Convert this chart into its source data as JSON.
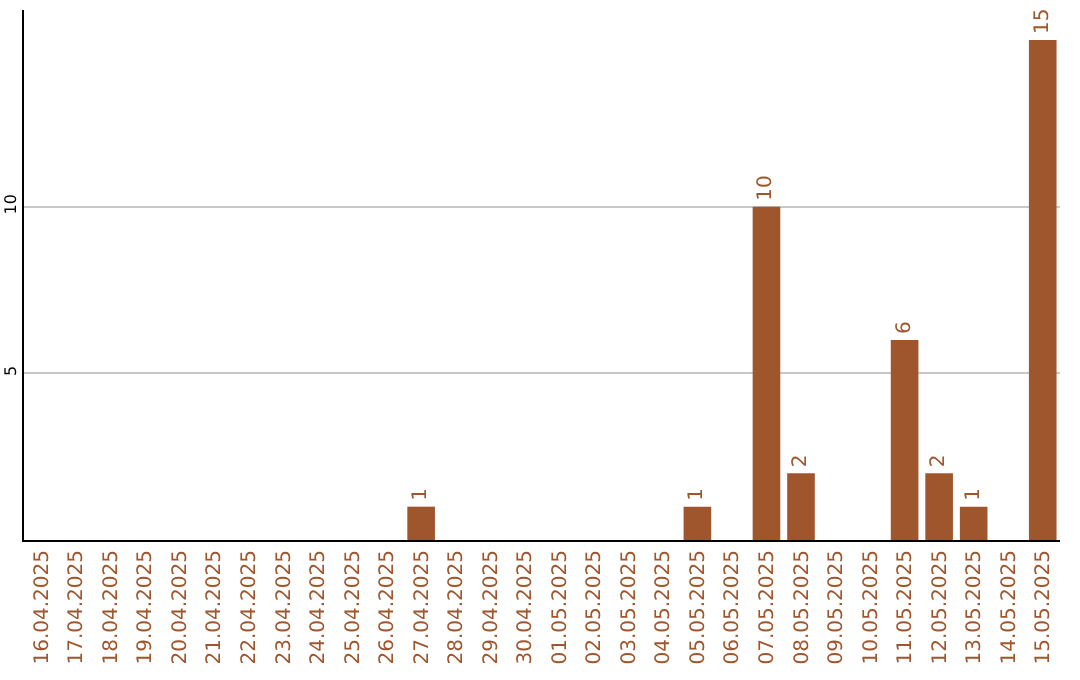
{
  "chart_data": {
    "type": "bar",
    "categories": [
      "16.04.2025",
      "17.04.2025",
      "18.04.2025",
      "19.04.2025",
      "20.04.2025",
      "21.04.2025",
      "22.04.2025",
      "23.04.2025",
      "24.04.2025",
      "25.04.2025",
      "26.04.2025",
      "27.04.2025",
      "28.04.2025",
      "29.04.2025",
      "30.04.2025",
      "01.05.2025",
      "02.05.2025",
      "03.05.2025",
      "04.05.2025",
      "05.05.2025",
      "06.05.2025",
      "07.05.2025",
      "08.05.2025",
      "09.05.2025",
      "10.05.2025",
      "11.05.2025",
      "12.05.2025",
      "13.05.2025",
      "14.05.2025",
      "15.05.2025"
    ],
    "values": [
      0,
      0,
      0,
      0,
      0,
      0,
      0,
      0,
      0,
      0,
      0,
      1,
      0,
      0,
      0,
      0,
      0,
      0,
      0,
      1,
      0,
      10,
      2,
      0,
      0,
      6,
      2,
      1,
      0,
      15
    ],
    "value_labels": [
      null,
      null,
      null,
      null,
      null,
      null,
      null,
      null,
      null,
      null,
      null,
      "1",
      null,
      null,
      null,
      null,
      null,
      null,
      null,
      "1",
      null,
      "10",
      "2",
      null,
      null,
      "6",
      "2",
      "1",
      null,
      "15"
    ],
    "color": "#a0562c",
    "ylim": [
      0,
      15.9
    ],
    "yticks": [
      5,
      10
    ],
    "grid": "y"
  }
}
